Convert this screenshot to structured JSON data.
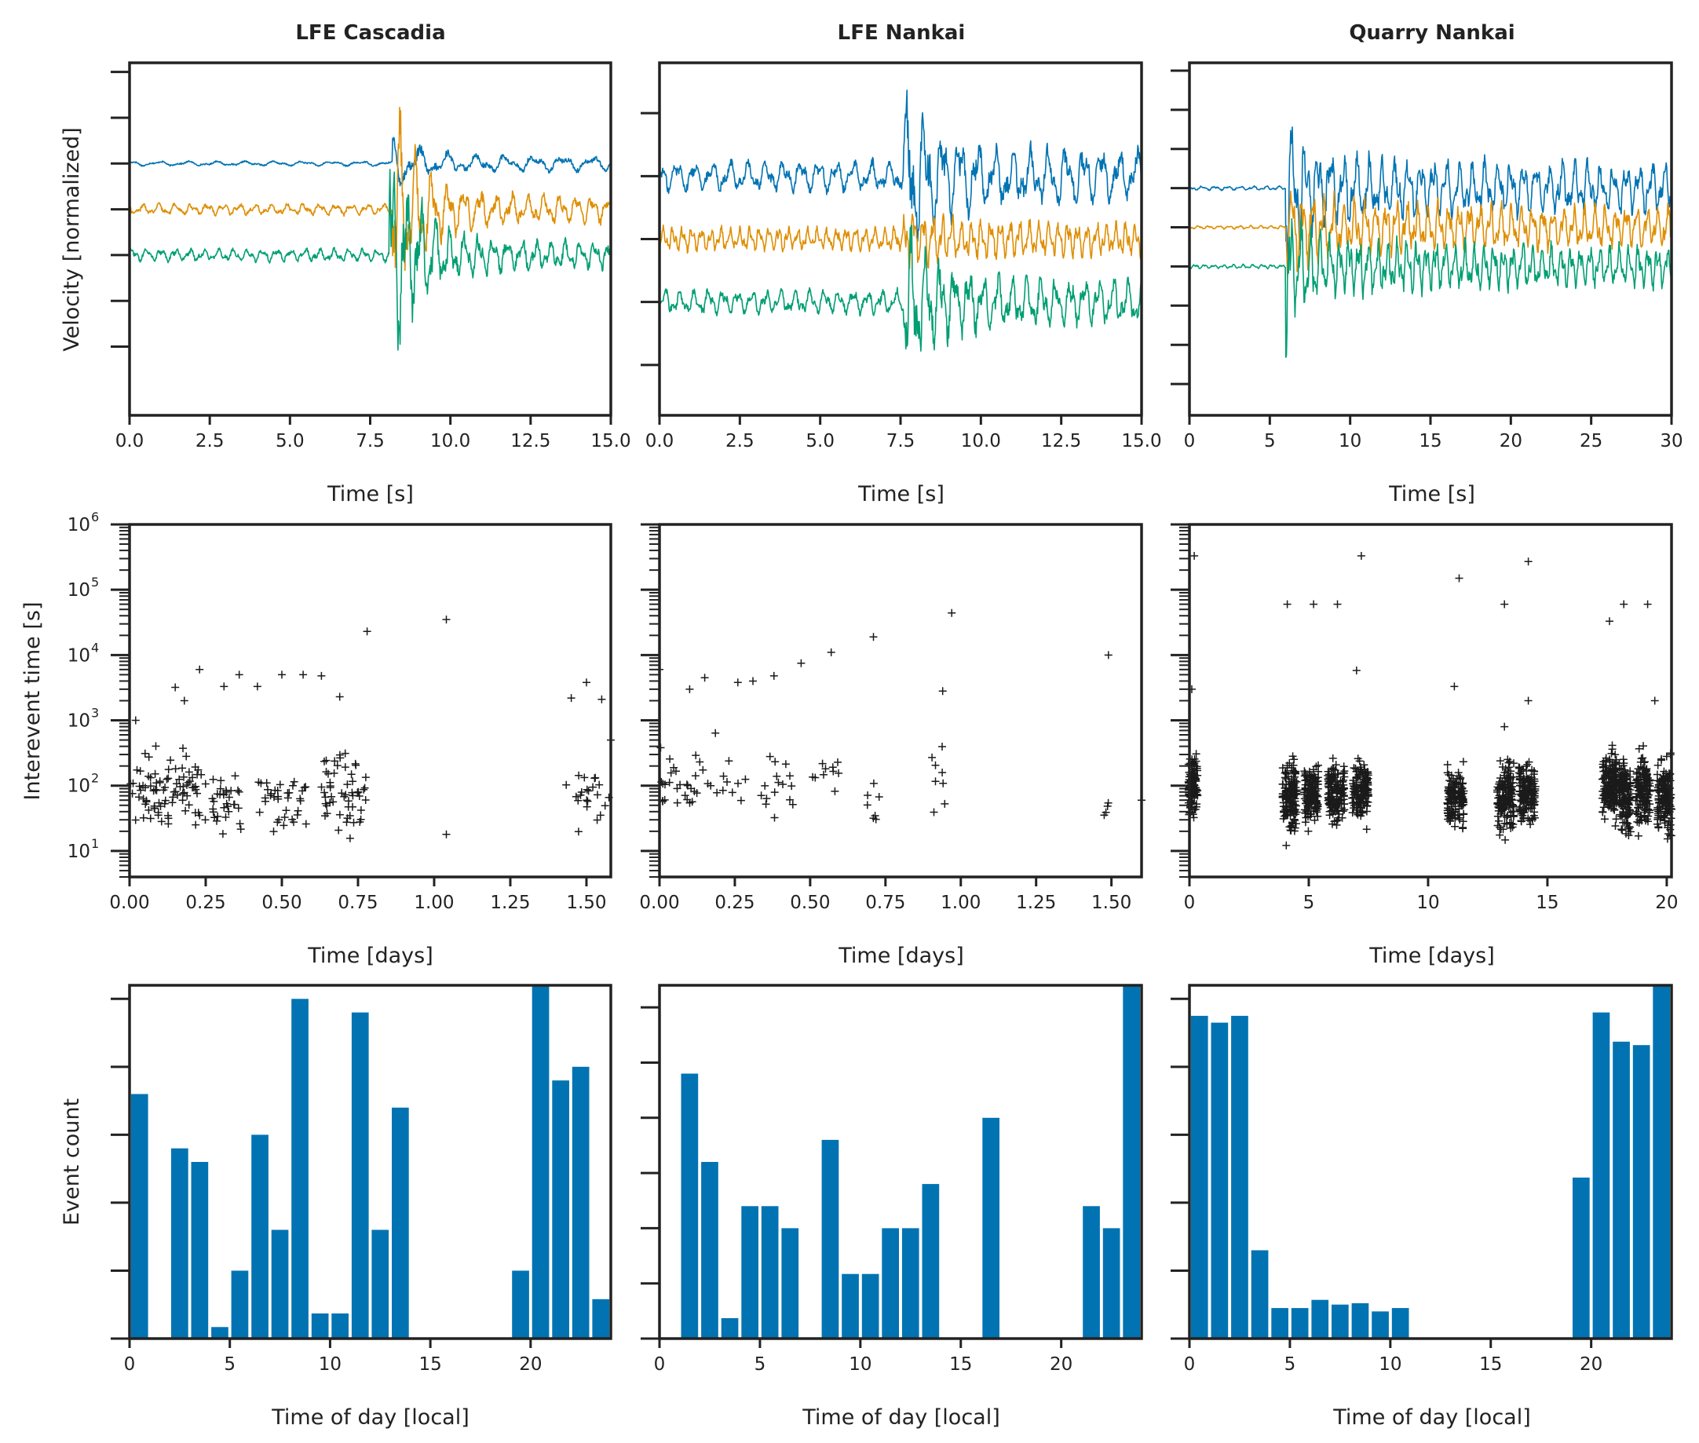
{
  "colors": {
    "series1": "#0173b2",
    "series2": "#de8f05",
    "series3": "#029e73",
    "bar": "#0173b2",
    "marker": "#1a1a1a",
    "axis": "#222222"
  },
  "columns": [
    {
      "title": "LFE Cascadia"
    },
    {
      "title": "LFE Nankai"
    },
    {
      "title": "Quarry Nankai"
    }
  ],
  "rows": [
    {
      "ylabel": "Velocity [normalized]",
      "xlabel": "Time [s]"
    },
    {
      "ylabel": "Interevent time [s]",
      "xlabel": "Time [days]"
    },
    {
      "ylabel": "Event count",
      "xlabel": "Time of day [local]"
    }
  ],
  "chart_data": [
    {
      "panel": "waveforms-lfe-cascadia",
      "type": "line",
      "title": "LFE Cascadia",
      "xlabel": "Time [s]",
      "ylabel": "Velocity [normalized]",
      "xlim": [
        0,
        15
      ],
      "ylim": [
        -4.5,
        3.2
      ],
      "xticks": [
        "0.0",
        "2.5",
        "5.0",
        "7.5",
        "10.0",
        "12.5",
        "15.0"
      ],
      "yticks_unlabeled": [
        -3,
        -2,
        -1,
        0,
        1,
        2,
        3
      ],
      "series": [
        {
          "offset": 1,
          "event_time": 8.2,
          "pre_amp": 0.06,
          "post_amp": 0.22,
          "peak": 0.65,
          "decay": 6,
          "period": 0.9
        },
        {
          "offset": 0,
          "event_time": 8.2,
          "pre_amp": 0.14,
          "post_amp": 0.45,
          "peak": 2.8,
          "decay": 3,
          "period": 0.5
        },
        {
          "offset": -1,
          "event_time": 8.1,
          "pre_amp": 0.16,
          "post_amp": 0.45,
          "peak": 3.2,
          "decay": 3,
          "period": 0.45
        }
      ]
    },
    {
      "panel": "waveforms-lfe-nankai",
      "type": "line",
      "title": "LFE Nankai",
      "xlabel": "Time [s]",
      "xlim": [
        0,
        15
      ],
      "ylim": [
        -2.8,
        2.8
      ],
      "xticks": [
        "0.0",
        "2.5",
        "5.0",
        "7.5",
        "10.0",
        "12.5",
        "15.0"
      ],
      "yticks_unlabeled": [
        -2,
        -1,
        0,
        1,
        2
      ],
      "series": [
        {
          "offset": 1,
          "event_time": 7.6,
          "pre_amp": 0.28,
          "post_amp": 0.5,
          "peak": 1.6,
          "decay": 6,
          "period": 0.55
        },
        {
          "offset": 0,
          "event_time": 7.6,
          "pre_amp": 0.22,
          "post_amp": 0.28,
          "peak": 0.5,
          "decay": 6,
          "period": 0.3
        },
        {
          "offset": -1,
          "event_time": 7.6,
          "pre_amp": 0.22,
          "post_amp": 0.42,
          "peak": 1.4,
          "decay": 6,
          "period": 0.45
        }
      ]
    },
    {
      "panel": "waveforms-quarry-nankai",
      "type": "line",
      "title": "Quarry Nankai",
      "xlabel": "Time [s]",
      "xlim": [
        0,
        30
      ],
      "ylim": [
        -4.8,
        4.2
      ],
      "xticks": [
        "0",
        "5",
        "10",
        "15",
        "20",
        "25",
        "30"
      ],
      "yticks_unlabeled": [
        -4,
        -3,
        -2,
        -1,
        0,
        1,
        2,
        3,
        4
      ],
      "series": [
        {
          "offset": 1,
          "event_time": 6,
          "pre_amp": 0.06,
          "post_amp": 1.1,
          "peak": 2.4,
          "decay": 12,
          "period": 0.8
        },
        {
          "offset": 0,
          "event_time": 6,
          "pre_amp": 0.05,
          "post_amp": 1.0,
          "peak": 1.3,
          "decay": 9,
          "period": 0.65
        },
        {
          "offset": -1,
          "event_time": 6,
          "pre_amp": 0.06,
          "post_amp": 0.95,
          "peak": 2.2,
          "decay": 10,
          "period": 0.6
        }
      ]
    },
    {
      "panel": "interevent-lfe-cascadia",
      "type": "scatter",
      "marker": "+",
      "ylabel": "Interevent time [s]",
      "xlabel": "Time [days]",
      "xlim": [
        0,
        1.58
      ],
      "ylim": [
        4,
        1000000
      ],
      "yscale": "log",
      "xticks": [
        "0.00",
        "0.25",
        "0.50",
        "0.75",
        "1.00",
        "1.25",
        "1.50"
      ],
      "yticks": [
        10,
        100,
        1000,
        10000,
        100000,
        1000000
      ],
      "clusters": [
        {
          "x0": 0.0,
          "x1": 0.25,
          "n": 90,
          "ymin": 6,
          "ymax": 1300
        },
        {
          "x0": 0.27,
          "x1": 0.37,
          "n": 32,
          "ymin": 6,
          "ymax": 500
        },
        {
          "x0": 0.42,
          "x1": 0.58,
          "n": 36,
          "ymin": 6,
          "ymax": 700
        },
        {
          "x0": 0.63,
          "x1": 0.78,
          "n": 55,
          "ymin": 5,
          "ymax": 1300
        },
        {
          "x0": 1.42,
          "x1": 1.58,
          "n": 22,
          "ymin": 7,
          "ymax": 700
        }
      ],
      "points": [
        [
          0.02,
          1000
        ],
        [
          0.15,
          3200
        ],
        [
          0.18,
          2000
        ],
        [
          0.23,
          6000
        ],
        [
          0.31,
          3300
        ],
        [
          0.36,
          5000
        ],
        [
          0.42,
          3300
        ],
        [
          0.5,
          5000
        ],
        [
          0.57,
          5000
        ],
        [
          0.63,
          4800
        ],
        [
          0.69,
          2300
        ],
        [
          0.78,
          23000
        ],
        [
          1.04,
          35000
        ],
        [
          1.04,
          18
        ],
        [
          1.5,
          3800
        ],
        [
          1.55,
          2100
        ],
        [
          1.45,
          2200
        ],
        [
          1.58,
          500
        ]
      ]
    },
    {
      "panel": "interevent-lfe-nankai",
      "type": "scatter",
      "marker": "+",
      "xlabel": "Time [days]",
      "xlim": [
        0,
        1.6
      ],
      "ylim": [
        4,
        1000000
      ],
      "yscale": "log",
      "xticks": [
        "0.00",
        "0.25",
        "0.50",
        "0.75",
        "1.00",
        "1.25",
        "1.50"
      ],
      "yticks": [
        10,
        100,
        1000,
        10000,
        100000,
        1000000
      ],
      "clusters": [
        {
          "x0": 0.0,
          "x1": 0.2,
          "n": 32,
          "ymin": 6,
          "ymax": 3000
        },
        {
          "x0": 0.2,
          "x1": 0.45,
          "n": 24,
          "ymin": 7,
          "ymax": 1000
        },
        {
          "x0": 0.5,
          "x1": 0.6,
          "n": 10,
          "ymin": 15,
          "ymax": 900
        },
        {
          "x0": 0.69,
          "x1": 0.73,
          "n": 7,
          "ymin": 5,
          "ymax": 600
        },
        {
          "x0": 0.9,
          "x1": 0.95,
          "n": 8,
          "ymin": 11,
          "ymax": 1600
        },
        {
          "x0": 1.47,
          "x1": 1.5,
          "n": 4,
          "ymin": 18,
          "ymax": 110
        }
      ],
      "points": [
        [
          0.0,
          6000
        ],
        [
          0.1,
          3000
        ],
        [
          0.15,
          4500
        ],
        [
          0.26,
          3800
        ],
        [
          0.31,
          4000
        ],
        [
          0.38,
          4800
        ],
        [
          0.47,
          7500
        ],
        [
          0.57,
          11000
        ],
        [
          0.71,
          19000
        ],
        [
          0.97,
          44000
        ],
        [
          0.94,
          2800
        ],
        [
          1.49,
          10000
        ],
        [
          1.6,
          60
        ]
      ]
    },
    {
      "panel": "interevent-quarry-nankai",
      "type": "scatter",
      "marker": "+",
      "xlabel": "Time [days]",
      "xlim": [
        0,
        20.2
      ],
      "ylim": [
        4,
        1000000
      ],
      "yscale": "log",
      "xticks": [
        "0",
        "5",
        "10",
        "15",
        "20"
      ],
      "yticks": [
        10,
        100,
        1000,
        10000,
        100000,
        1000000
      ],
      "clusters": [
        {
          "x0": -0.05,
          "x1": 0.35,
          "n": 130,
          "ymin": 14,
          "ymax": 700
        },
        {
          "x0": 3.9,
          "x1": 4.5,
          "n": 150,
          "ymin": 5,
          "ymax": 900
        },
        {
          "x0": 4.8,
          "x1": 5.4,
          "n": 140,
          "ymin": 9,
          "ymax": 600
        },
        {
          "x0": 5.8,
          "x1": 6.5,
          "n": 150,
          "ymin": 10,
          "ymax": 600
        },
        {
          "x0": 6.8,
          "x1": 7.5,
          "n": 140,
          "ymin": 11,
          "ymax": 600
        },
        {
          "x0": 10.8,
          "x1": 11.5,
          "n": 140,
          "ymin": 9,
          "ymax": 500
        },
        {
          "x0": 12.9,
          "x1": 13.6,
          "n": 150,
          "ymin": 5,
          "ymax": 700
        },
        {
          "x0": 13.8,
          "x1": 14.5,
          "n": 150,
          "ymin": 9,
          "ymax": 700
        },
        {
          "x0": 17.3,
          "x1": 17.9,
          "n": 160,
          "ymin": 10,
          "ymax": 1000
        },
        {
          "x0": 18.0,
          "x1": 18.5,
          "n": 150,
          "ymin": 6,
          "ymax": 900
        },
        {
          "x0": 18.7,
          "x1": 19.3,
          "n": 150,
          "ymin": 7,
          "ymax": 1000
        },
        {
          "x0": 19.6,
          "x1": 20.2,
          "n": 150,
          "ymin": 5,
          "ymax": 900
        }
      ],
      "points": [
        [
          0.2,
          330000
        ],
        [
          0.1,
          3000
        ],
        [
          4.1,
          60000
        ],
        [
          5.2,
          60000
        ],
        [
          6.2,
          60000
        ],
        [
          7.2,
          330000
        ],
        [
          7.0,
          5800
        ],
        [
          11.3,
          150000
        ],
        [
          11.1,
          3300
        ],
        [
          13.2,
          60000
        ],
        [
          13.2,
          800
        ],
        [
          14.2,
          270000
        ],
        [
          14.2,
          2000
        ],
        [
          17.6,
          33000
        ],
        [
          18.2,
          60000
        ],
        [
          19.2,
          60000
        ],
        [
          19.5,
          2000
        ]
      ]
    },
    {
      "panel": "hist-lfe-cascadia",
      "type": "bar",
      "ylabel": "Event count",
      "xlabel": "Time of day [local]",
      "xlim": [
        0,
        24
      ],
      "ylim": [
        0,
        5.2
      ],
      "xticks": [
        "0",
        "5",
        "10",
        "15",
        "20"
      ],
      "yticks_unlabeled": [
        0,
        1,
        2,
        3,
        4,
        5
      ],
      "bin_width": 1,
      "bar_width": 0.85,
      "categories": [
        "0",
        "1",
        "2",
        "3",
        "4",
        "5",
        "6",
        "7",
        "8",
        "9",
        "10",
        "11",
        "12",
        "13",
        "14",
        "15",
        "16",
        "17",
        "18",
        "19",
        "20",
        "21",
        "22",
        "23"
      ],
      "values": [
        3.6,
        0,
        2.8,
        2.6,
        0.17,
        1.0,
        3.0,
        1.6,
        5.0,
        0.37,
        0.37,
        4.8,
        1.6,
        3.4,
        0,
        0,
        0,
        0,
        0,
        1.0,
        5.2,
        3.8,
        4.0,
        0.58
      ]
    },
    {
      "panel": "hist-lfe-nankai",
      "type": "bar",
      "xlabel": "Time of day [local]",
      "xlim": [
        0,
        24
      ],
      "ylim": [
        0,
        6.4
      ],
      "xticks": [
        "0",
        "5",
        "10",
        "15",
        "20"
      ],
      "yticks_unlabeled": [
        0,
        1,
        2,
        3,
        4,
        5,
        6
      ],
      "bin_width": 1,
      "bar_width": 0.85,
      "categories": [
        "0",
        "1",
        "2",
        "3",
        "4",
        "5",
        "6",
        "7",
        "8",
        "9",
        "10",
        "11",
        "12",
        "13",
        "14",
        "15",
        "16",
        "17",
        "18",
        "19",
        "20",
        "21",
        "22",
        "23"
      ],
      "values": [
        0,
        4.8,
        3.2,
        0.37,
        2.4,
        2.4,
        2.0,
        0,
        3.6,
        1.17,
        1.17,
        2.0,
        2.0,
        2.8,
        0,
        0,
        4.0,
        0,
        0,
        0,
        0,
        2.4,
        2.0,
        6.4
      ]
    },
    {
      "panel": "hist-quarry-nankai",
      "type": "bar",
      "xlabel": "Time of day [local]",
      "xlim": [
        0,
        24
      ],
      "ylim": [
        0,
        5.2
      ],
      "xticks": [
        "0",
        "5",
        "10",
        "15",
        "20"
      ],
      "yticks_unlabeled": [
        0,
        1,
        2,
        3,
        4,
        5
      ],
      "bin_width": 1,
      "bar_width": 0.85,
      "categories": [
        "0",
        "1",
        "2",
        "3",
        "4",
        "5",
        "6",
        "7",
        "8",
        "9",
        "10",
        "11",
        "12",
        "13",
        "14",
        "15",
        "16",
        "17",
        "18",
        "19",
        "20",
        "21",
        "22",
        "23"
      ],
      "values": [
        4.75,
        4.65,
        4.75,
        1.3,
        0.45,
        0.45,
        0.57,
        0.5,
        0.52,
        0.4,
        0.45,
        0,
        0,
        0,
        0,
        0,
        0,
        0,
        0,
        2.37,
        4.8,
        4.37,
        4.32,
        5.2
      ]
    }
  ]
}
